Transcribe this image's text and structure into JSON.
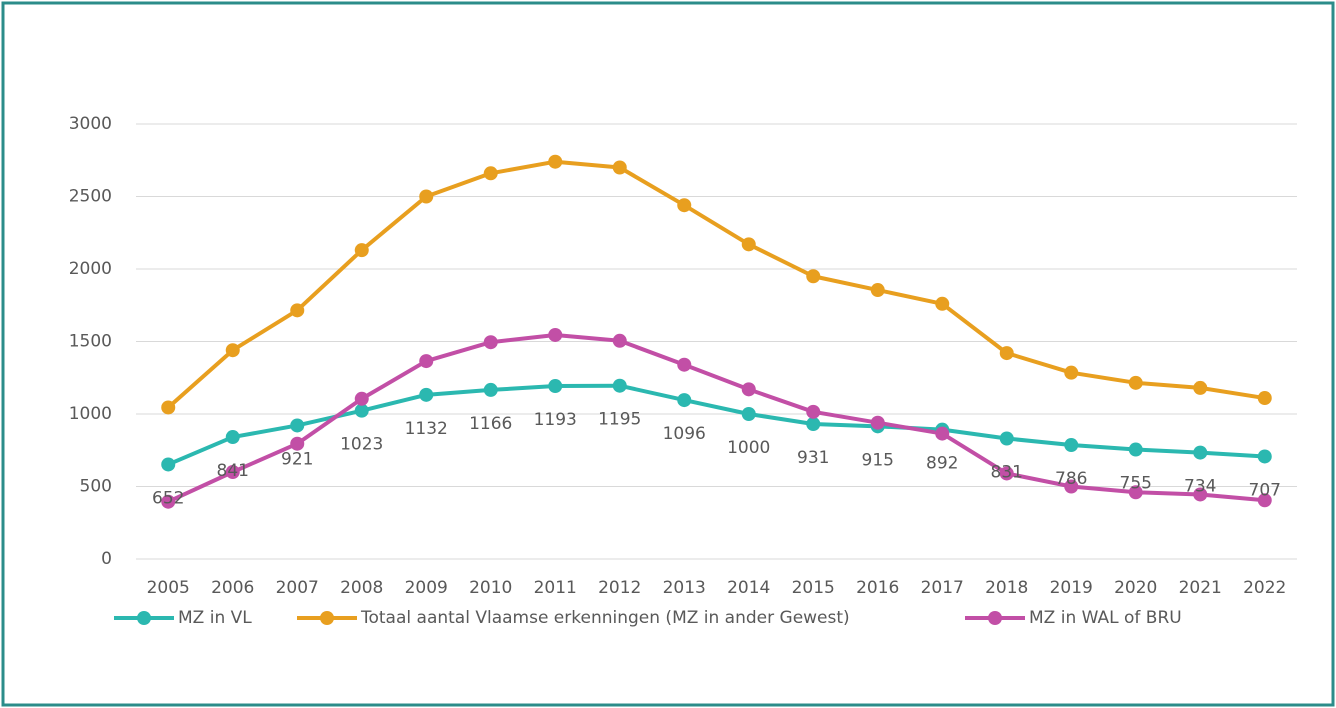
{
  "chart_data": {
    "type": "line",
    "categories": [
      "2005",
      "2006",
      "2007",
      "2008",
      "2009",
      "2010",
      "2011",
      "2012",
      "2013",
      "2014",
      "2015",
      "2016",
      "2017",
      "2018",
      "2019",
      "2020",
      "2021",
      "2022"
    ],
    "series": [
      {
        "name": "MZ in VL",
        "color": "#2bb8b0",
        "data_labels": true,
        "values": [
          652,
          841,
          921,
          1023,
          1132,
          1166,
          1193,
          1195,
          1096,
          1000,
          931,
          915,
          892,
          831,
          786,
          755,
          734,
          707
        ]
      },
      {
        "name": "Totaal aantal Vlaamse erkenningen (MZ in ander Gewest)",
        "color": "#e89f1f",
        "values": [
          1045,
          1440,
          1715,
          2130,
          2500,
          2660,
          2740,
          2700,
          2440,
          2170,
          1950,
          1855,
          1760,
          1420,
          1285,
          1215,
          1180,
          1110
        ]
      },
      {
        "name": "MZ in WAL of BRU",
        "color": "#c24fa6",
        "values": [
          395,
          600,
          795,
          1105,
          1365,
          1495,
          1545,
          1505,
          1340,
          1170,
          1015,
          940,
          865,
          590,
          500,
          460,
          445,
          405
        ]
      }
    ],
    "ylim": [
      0,
      3000
    ],
    "yticks": [
      0,
      500,
      1000,
      1500,
      2000,
      2500,
      3000
    ],
    "grid": true,
    "legend": "bottom"
  }
}
